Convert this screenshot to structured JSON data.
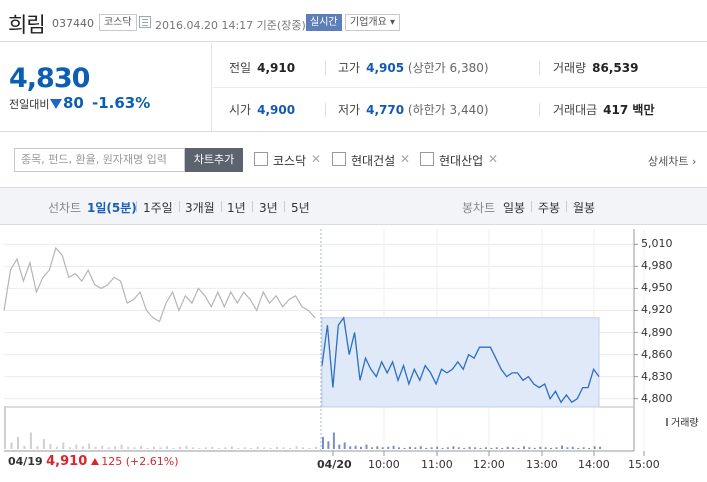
{
  "header": {
    "name": "희림",
    "code": "037440",
    "market": "코스닥",
    "time": "2016.04.20 14:17 기준(장중)",
    "live": "실시간",
    "info": "기업개요 ▾"
  },
  "price": {
    "now": "4,830",
    "change_label": "전일대비",
    "change": "80",
    "change_pct": "-1.63%"
  },
  "stats": {
    "prev_label": "전일",
    "prev": "4,910",
    "high_label": "고가",
    "high": "4,905",
    "high_sub": "(상한가 6,380)",
    "vol_label": "거래량",
    "vol": "86,539",
    "open_label": "시가",
    "open": "4,900",
    "low_label": "저가",
    "low": "4,770",
    "low_sub": "(하한가 3,440)",
    "amt_label": "거래대금",
    "amt": "417 백만"
  },
  "compare": {
    "placeholder": "종목, 펀드, 환율, 원자재명 입력",
    "add_button": "차트추가",
    "items": [
      "코스닥",
      "현대건설",
      "현대산업"
    ],
    "detail": "상세차트 ›"
  },
  "tabs": {
    "line_label": "선차트",
    "periods": [
      "1일(5분)",
      "1주일",
      "3개월",
      "1년",
      "3년",
      "5년"
    ],
    "candle_label": "봉차트",
    "candles": [
      "일봉",
      "주봉",
      "월봉"
    ]
  },
  "chart_data": {
    "type": "line",
    "y_ticks": [
      "5,010",
      "4,980",
      "4,950",
      "4,920",
      "4,890",
      "4,860",
      "4,830",
      "4,800"
    ],
    "ylim": [
      4790,
      5020
    ],
    "x_ticks": [
      "04/20",
      "10:00",
      "11:00",
      "12:00",
      "13:00",
      "14:00",
      "15:00"
    ],
    "prev_close": 4910,
    "series": [
      {
        "values": [
          4920,
          4975,
          4990,
          4960,
          4985,
          4945,
          4965,
          4975,
          5005,
          4995,
          4965,
          4970,
          4960,
          4975,
          4955,
          4950,
          4955,
          4965,
          4960,
          4930,
          4935,
          4945,
          4920,
          4910,
          4905,
          4930,
          4945,
          4920,
          4940,
          4930,
          4950,
          4940,
          4925,
          4945,
          4925,
          4945,
          4930,
          4945,
          4935,
          4920,
          4945,
          4930,
          4940,
          4925,
          4935,
          4940,
          4925,
          4920,
          4910
        ]
      },
      {
        "values": [
          4845,
          4900,
          4815,
          4900,
          4910,
          4860,
          4890,
          4825,
          4855,
          4840,
          4830,
          4850,
          4835,
          4850,
          4825,
          4845,
          4820,
          4840,
          4825,
          4845,
          4835,
          4820,
          4840,
          4835,
          4840,
          4850,
          4840,
          4860,
          4855,
          4870,
          4870,
          4870,
          4855,
          4840,
          4830,
          4835,
          4835,
          4825,
          4830,
          4820,
          4815,
          4820,
          4800,
          4810,
          4795,
          4805,
          4795,
          4800,
          4815,
          4815,
          4840,
          4830
        ]
      }
    ],
    "volume_label": "거래량",
    "prev_volume": [
      78,
      12,
      22,
      6,
      30,
      5,
      18,
      9,
      4,
      12,
      3,
      8,
      5,
      10,
      4,
      6,
      3,
      5,
      8,
      4,
      3,
      6,
      2,
      4,
      3,
      5,
      2,
      4,
      6,
      3,
      2,
      3,
      4,
      2,
      3,
      5,
      2,
      3,
      2,
      4,
      3,
      2,
      4,
      3,
      2,
      5,
      3,
      2,
      4
    ],
    "today_volume": [
      22,
      14,
      30,
      8,
      12,
      5,
      6,
      4,
      8,
      3,
      5,
      3,
      4,
      6,
      3,
      2,
      4,
      3,
      5,
      2,
      3,
      4,
      2,
      3,
      5,
      3,
      2,
      4,
      3,
      2,
      3,
      2,
      3,
      2,
      4,
      3,
      2,
      5,
      3,
      2,
      4,
      3,
      2,
      3,
      6,
      3,
      4,
      2,
      3,
      2,
      5,
      4
    ]
  },
  "footer": {
    "date": "04/19",
    "price": "4,910",
    "change": "125",
    "pct": "(+2.61%)"
  }
}
